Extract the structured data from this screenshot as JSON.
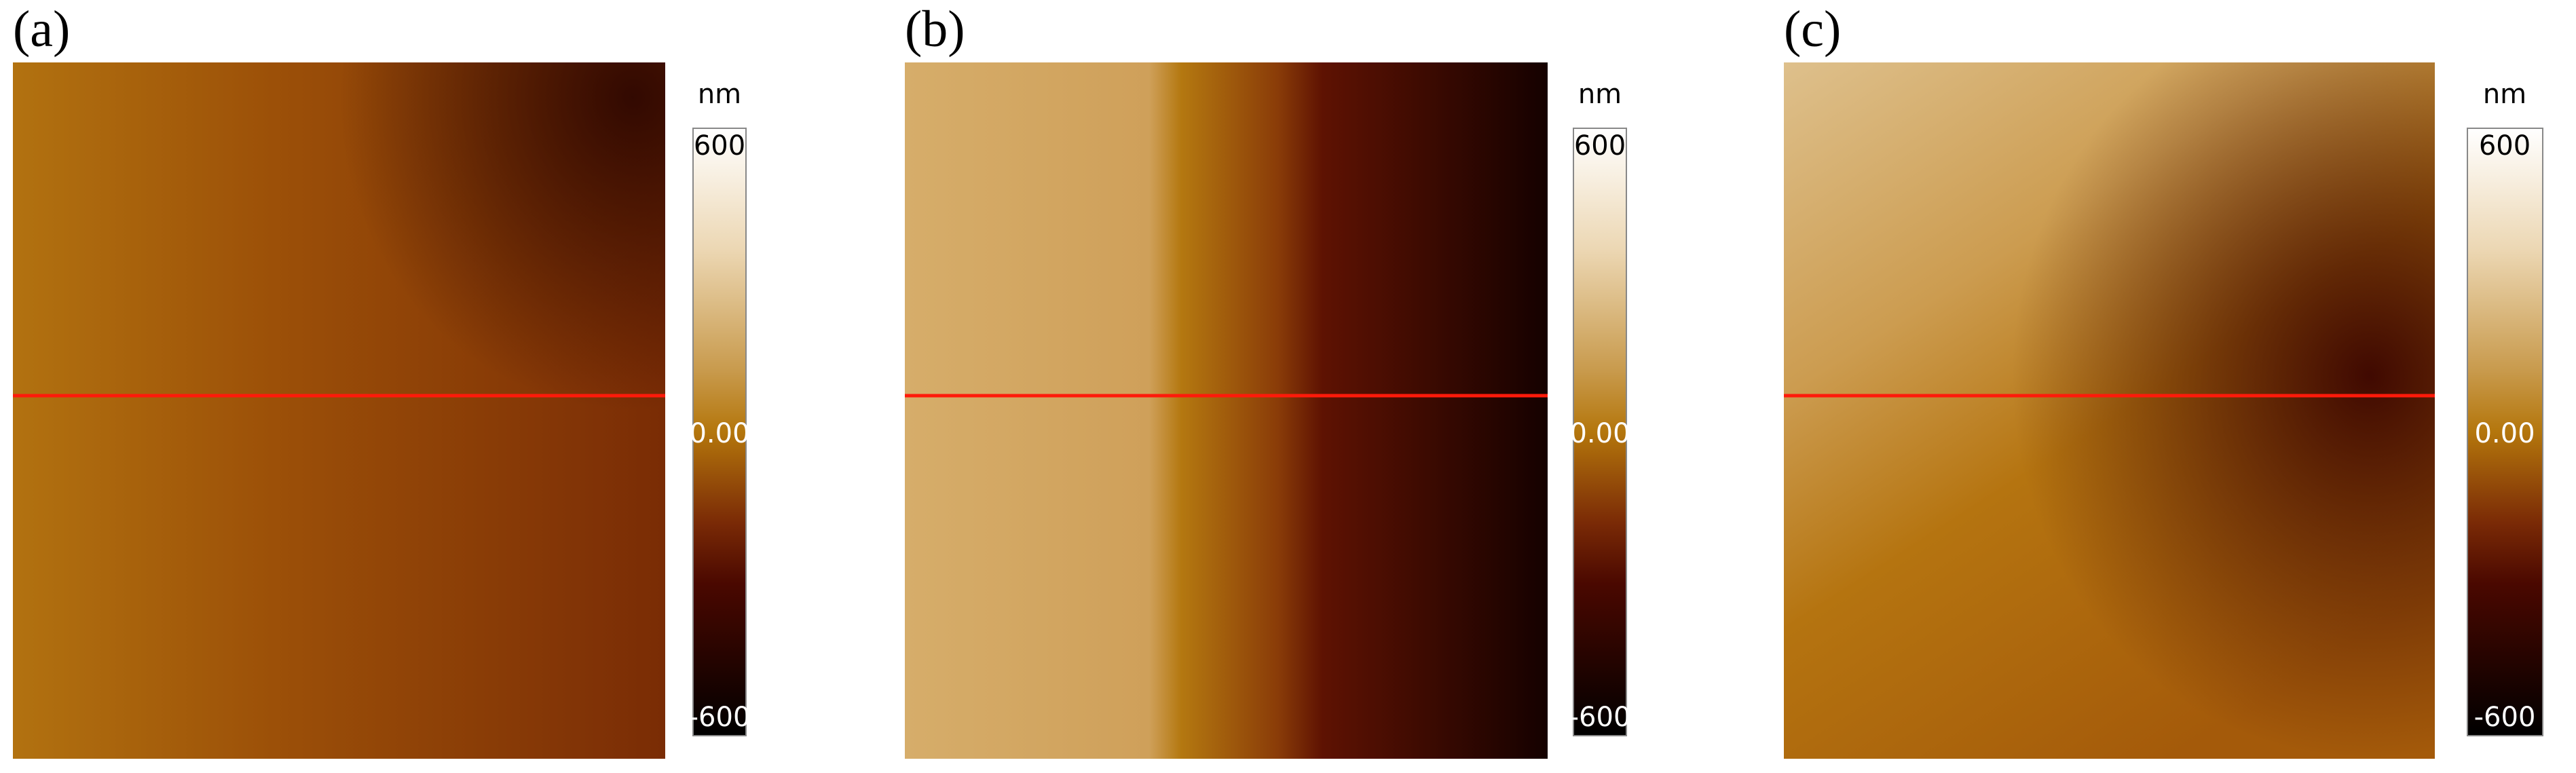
{
  "panels": [
    {
      "label": "(a)",
      "colorbar": {
        "unit": "nm",
        "ticks": [
          "600",
          "0.00",
          "-600"
        ]
      }
    },
    {
      "label": "(b)",
      "colorbar": {
        "unit": "nm",
        "ticks": [
          "600",
          "0.00",
          "-600"
        ]
      }
    },
    {
      "label": "(c)",
      "colorbar": {
        "unit": "nm",
        "ticks": [
          "600",
          "0.00",
          "-600"
        ]
      }
    }
  ]
}
